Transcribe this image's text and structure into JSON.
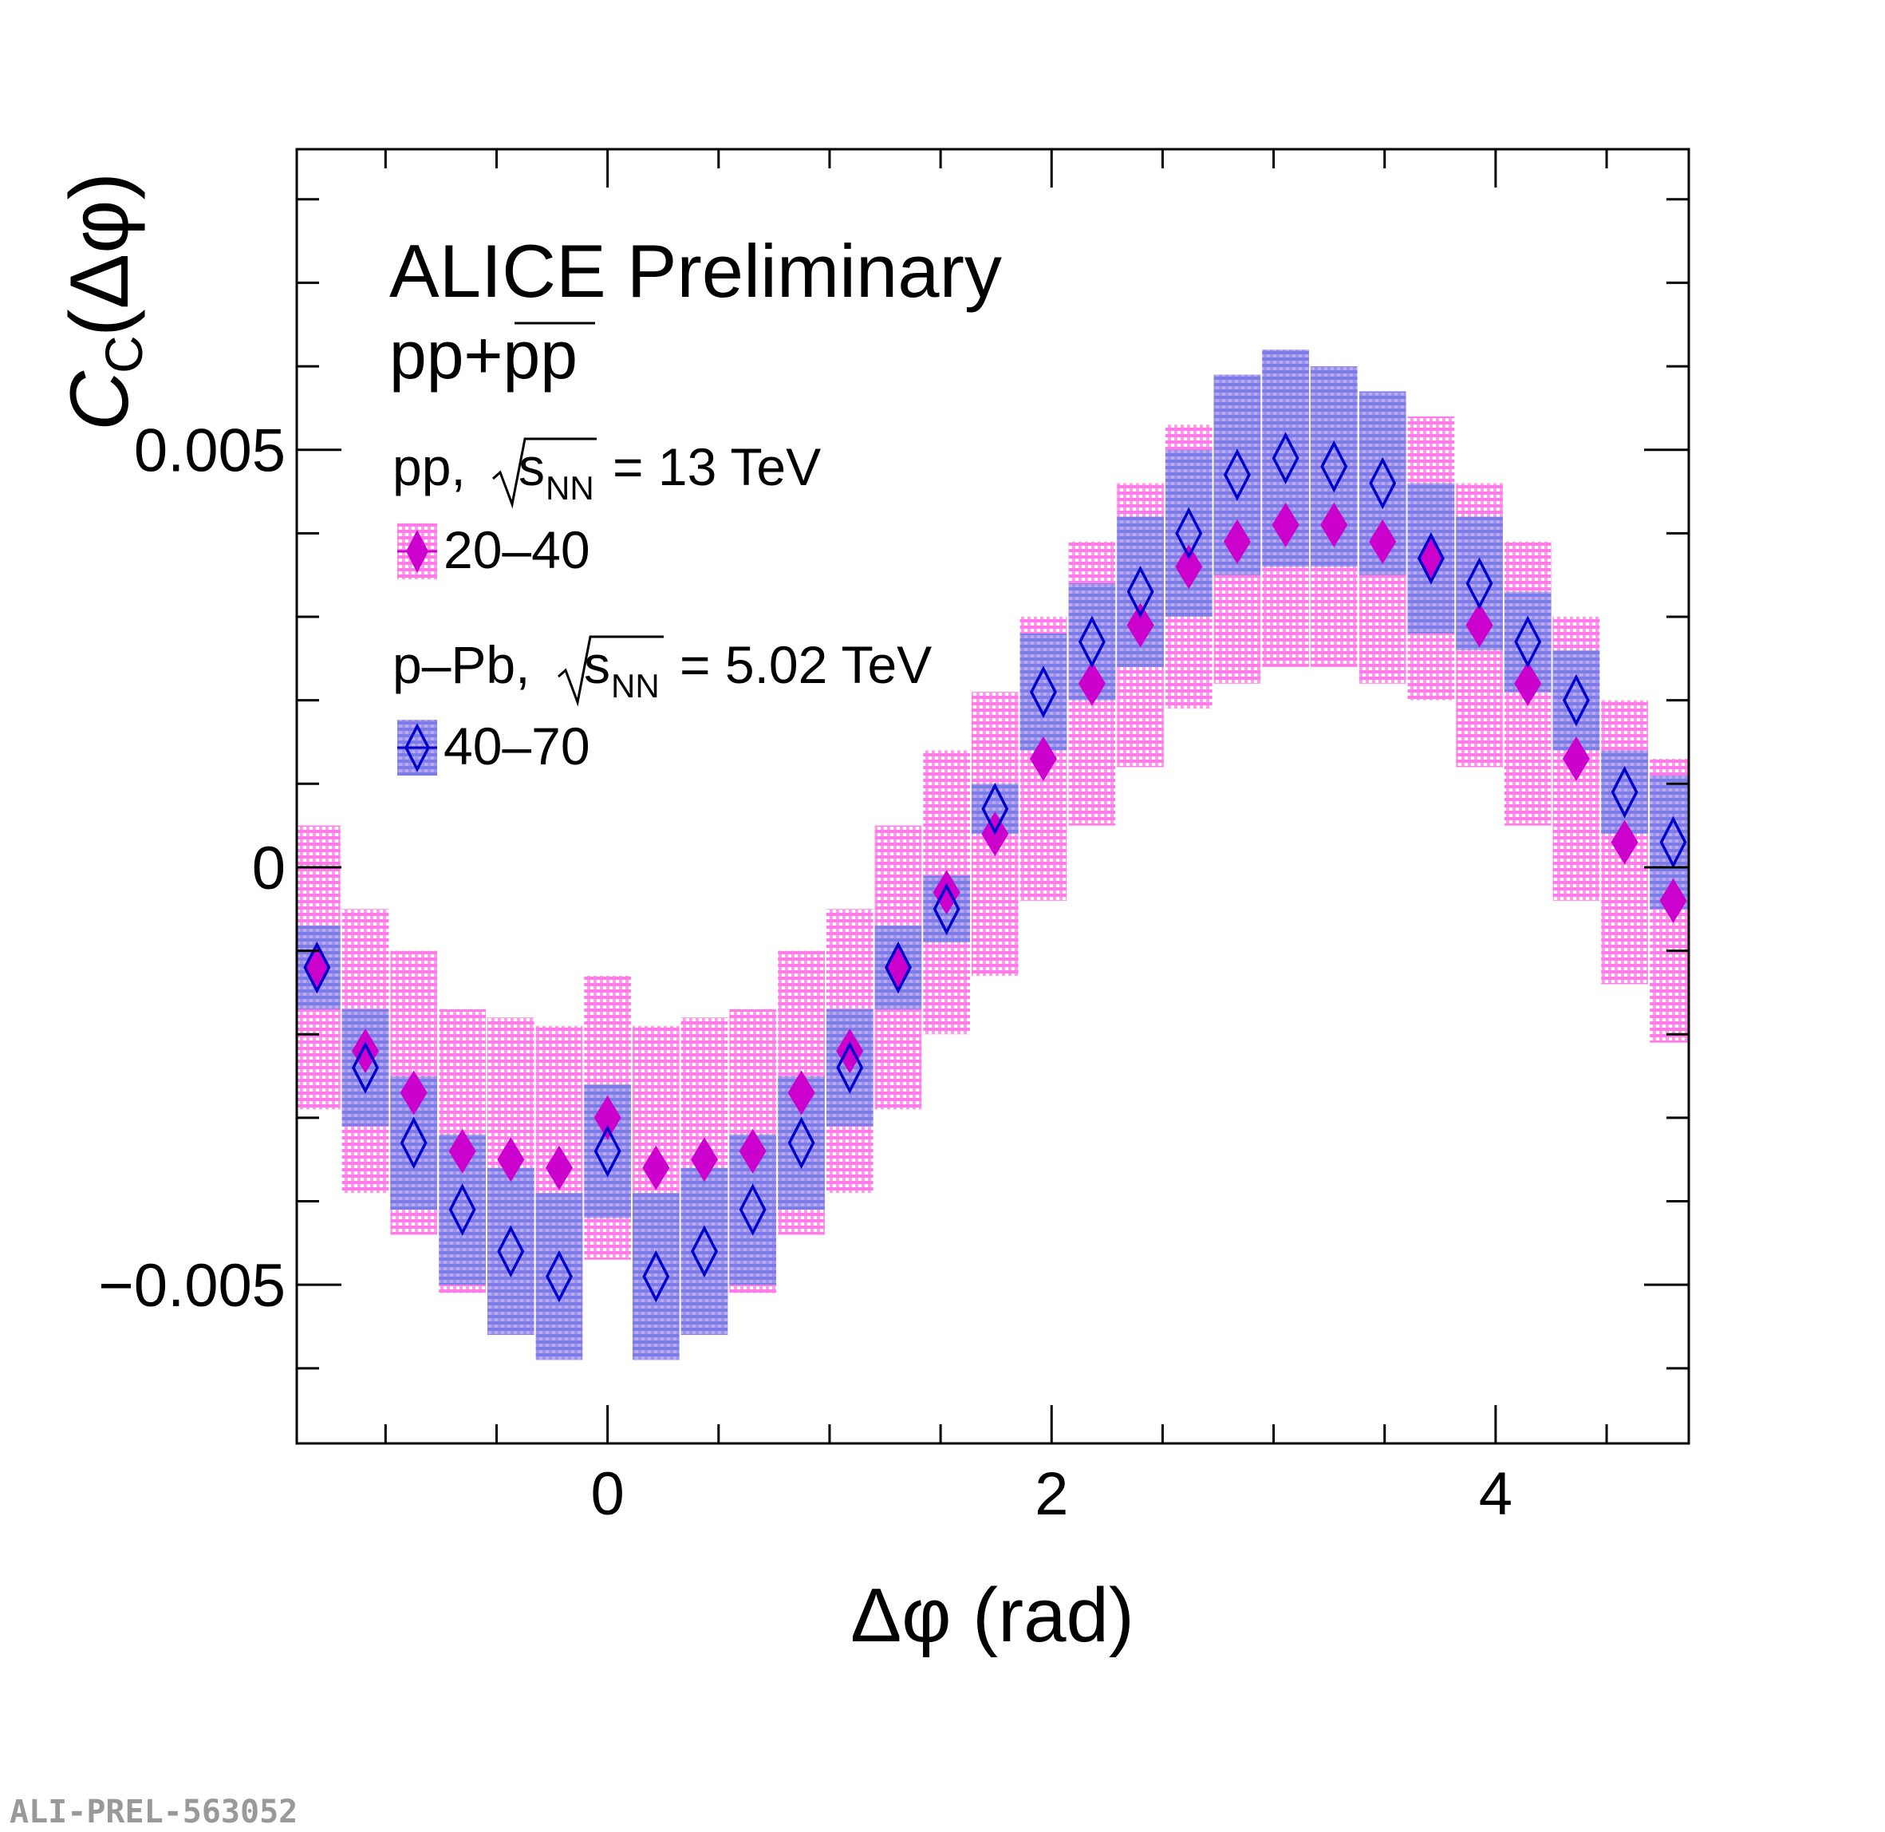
{
  "chart_data": {
    "type": "scatter",
    "title": "ALICE Preliminary",
    "subtitle": "pp+pp",
    "xlabel": "Δφ (rad)",
    "ylabel": "C",
    "ylabel_sub": "C",
    "ylabel_suffix": "(Δφ)",
    "xlim": [
      -1.4,
      4.87
    ],
    "ylim": [
      -0.0069,
      0.0086
    ],
    "xticks": [
      {
        "v": 0,
        "label": "0"
      },
      {
        "v": 2,
        "label": "2"
      },
      {
        "v": 4,
        "label": "4"
      }
    ],
    "yticks": [
      {
        "v": 0.005,
        "label": "0.005"
      },
      {
        "v": 0,
        "label": "0"
      },
      {
        "v": -0.005,
        "label": "−0.005"
      }
    ],
    "x": [
      -1.309,
      -1.091,
      -0.873,
      -0.654,
      -0.436,
      -0.218,
      0.0,
      0.218,
      0.436,
      0.654,
      0.873,
      1.091,
      1.309,
      1.527,
      1.745,
      1.963,
      2.182,
      2.4,
      2.618,
      2.836,
      3.054,
      3.272,
      3.491,
      3.709,
      3.927,
      4.145,
      4.363,
      4.581,
      4.8
    ],
    "bin_half_width": 0.109,
    "series": [
      {
        "name": "20–40",
        "marker": "filled-diamond",
        "color": "#cc00cc",
        "box_color": "#ff88ee",
        "values": [
          -0.0012,
          -0.0022,
          -0.0027,
          -0.0034,
          -0.0035,
          -0.0036,
          -0.003,
          -0.0036,
          -0.0035,
          -0.0034,
          -0.0027,
          -0.0022,
          -0.0012,
          -0.0003,
          0.0004,
          0.0013,
          0.0022,
          0.0029,
          0.0036,
          0.0039,
          0.0041,
          0.0041,
          0.0039,
          0.0037,
          0.0029,
          0.0022,
          0.0013,
          0.0003,
          -0.0004
        ],
        "syst": [
          0.0017,
          0.0017,
          0.0017,
          0.0017,
          0.0017,
          0.0017,
          0.0017,
          0.0017,
          0.0017,
          0.0017,
          0.0017,
          0.0017,
          0.0017,
          0.0017,
          0.0017,
          0.0017,
          0.0017,
          0.0017,
          0.0017,
          0.0017,
          0.0017,
          0.0017,
          0.0017,
          0.0017,
          0.0017,
          0.0017,
          0.0017,
          0.0017,
          0.0017
        ]
      },
      {
        "name": "40–70",
        "marker": "open-diamond",
        "color": "#0000cc",
        "box_color": "#8888ee",
        "values": [
          -0.0012,
          -0.0024,
          -0.0033,
          -0.0041,
          -0.0046,
          -0.0049,
          -0.0034,
          -0.0049,
          -0.0046,
          -0.0041,
          -0.0033,
          -0.0024,
          -0.0012,
          -0.0005,
          0.0007,
          0.0021,
          0.0027,
          0.0033,
          0.004,
          0.0047,
          0.0049,
          0.0048,
          0.0046,
          0.0037,
          0.0034,
          0.0027,
          0.002,
          0.0009,
          0.0003
        ],
        "syst": [
          0.0005,
          0.0007,
          0.0008,
          0.0009,
          0.001,
          0.001,
          0.0008,
          0.001,
          0.001,
          0.0009,
          0.0008,
          0.0007,
          0.0005,
          0.0004,
          0.0003,
          0.0007,
          0.0007,
          0.0009,
          0.001,
          0.0012,
          0.0013,
          0.0012,
          0.0011,
          0.0009,
          0.0008,
          0.0006,
          0.0006,
          0.0005,
          0.0008
        ]
      }
    ],
    "legend": {
      "placement": "top-left",
      "group1_label": "pp, ",
      "group1_energy": "= 13 TeV",
      "group2_label": "p–Pb, ",
      "group2_energy": "= 5.02 TeV",
      "sqrt_s": "s",
      "sqrt_sub": "NN"
    },
    "watermark": "ALI-PREL-563052"
  }
}
